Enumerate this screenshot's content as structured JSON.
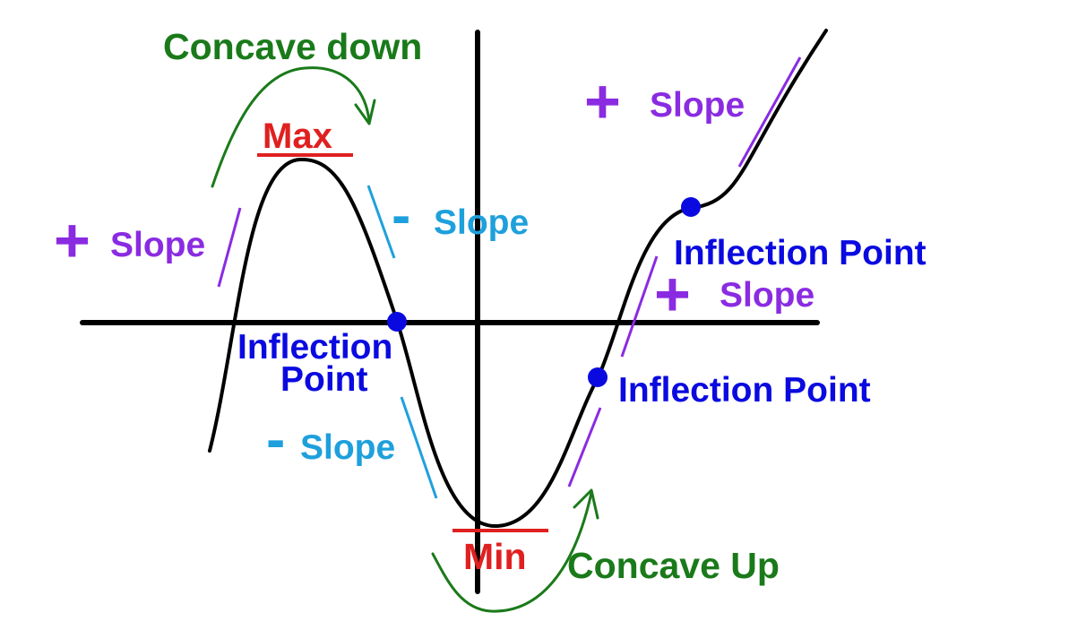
{
  "colors": {
    "curve": "#000000",
    "axes": "#000000",
    "concavity": "#1a7a1a",
    "extrema": "#e02020",
    "positive_slope": "#8a2be2",
    "negative_slope": "#1ea0dc",
    "inflection": "#0a0ae0"
  },
  "labels": {
    "concave_down": "Concave down",
    "concave_up": "Concave Up",
    "max": "Max",
    "min": "Min",
    "plus_sign": "+",
    "minus_sign": "-",
    "slope": "Slope",
    "inflection_line1": "Inflection",
    "inflection_line2": "Point",
    "inflection_point": "Inflection Point"
  }
}
